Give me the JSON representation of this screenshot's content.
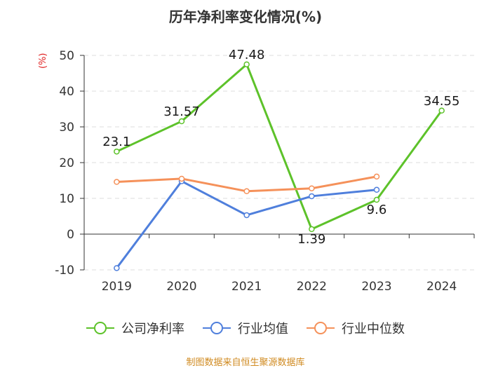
{
  "chart_data": {
    "type": "line",
    "title": "历年净利率变化情况(%)",
    "ylabel": "(%)",
    "xlabel": "",
    "categories": [
      "2019",
      "2020",
      "2021",
      "2022",
      "2023",
      "2024"
    ],
    "ylim": [
      -10,
      50
    ],
    "yticks": [
      -10,
      0,
      10,
      20,
      30,
      40,
      50
    ],
    "grid": true,
    "legend_position": "bottom",
    "series": [
      {
        "name": "公司净利率",
        "color": "#5dc22a",
        "values": [
          23.1,
          31.57,
          47.48,
          1.39,
          9.6,
          34.55
        ],
        "labels": [
          "23.1",
          "31.57",
          "47.48",
          "1.39",
          "9.6",
          "34.55"
        ]
      },
      {
        "name": "行业均值",
        "color": "#4f7fdc",
        "values": [
          -9.5,
          14.8,
          5.3,
          10.6,
          12.4,
          null
        ]
      },
      {
        "name": "行业中位数",
        "color": "#f5915a",
        "values": [
          14.6,
          15.5,
          12.0,
          12.8,
          16.1,
          null
        ]
      }
    ]
  },
  "source": "制图数据来自恒生聚源数据库"
}
